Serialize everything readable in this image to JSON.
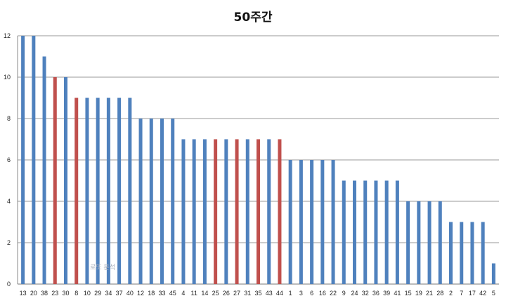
{
  "chart_data": {
    "type": "bar",
    "title": "50주간",
    "xlabel": "",
    "ylabel": "",
    "ylim": [
      0,
      12
    ],
    "yticks": [
      0,
      2,
      4,
      6,
      8,
      10,
      12
    ],
    "grid": true,
    "legend": "none",
    "colors": {
      "default": "#4F81BD",
      "highlight": "#C0504D"
    },
    "categories": [
      "13",
      "20",
      "38",
      "23",
      "30",
      "8",
      "10",
      "29",
      "34",
      "37",
      "40",
      "12",
      "18",
      "33",
      "45",
      "4",
      "11",
      "14",
      "25",
      "26",
      "27",
      "31",
      "35",
      "43",
      "44",
      "1",
      "3",
      "6",
      "16",
      "22",
      "9",
      "24",
      "32",
      "36",
      "39",
      "41",
      "15",
      "19",
      "21",
      "28",
      "2",
      "7",
      "17",
      "42",
      "5"
    ],
    "values": [
      12,
      12,
      11,
      10,
      10,
      9,
      9,
      9,
      9,
      9,
      9,
      8,
      8,
      8,
      8,
      7,
      7,
      7,
      7,
      7,
      7,
      7,
      7,
      7,
      7,
      6,
      6,
      6,
      6,
      6,
      5,
      5,
      5,
      5,
      5,
      5,
      4,
      4,
      4,
      4,
      3,
      3,
      3,
      3,
      1
    ],
    "highlighted": [
      "23",
      "8",
      "25",
      "27",
      "35",
      "44"
    ]
  },
  "watermark": "로또 분석"
}
